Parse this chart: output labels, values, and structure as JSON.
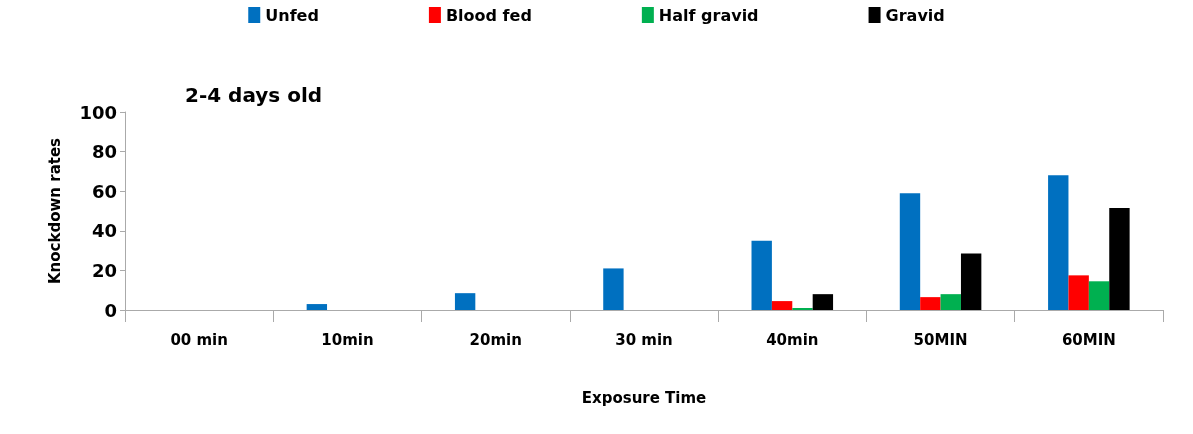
{
  "chart_data": {
    "type": "bar",
    "title": "2-4 days old",
    "xlabel": "Exposure Time",
    "ylabel": "Knockdown rates",
    "categories": [
      "00 min",
      "10min",
      "20min",
      "30 min",
      "40min",
      "50MIN",
      "60MIN"
    ],
    "series": [
      {
        "name": "Unfed",
        "color": "#0070c0",
        "values": [
          0,
          3,
          8.5,
          21,
          35,
          59,
          68
        ]
      },
      {
        "name": "Blood fed",
        "color": "#ff0000",
        "values": [
          0,
          0,
          0,
          0,
          4.5,
          6.5,
          17.5
        ]
      },
      {
        "name": "Half gravid",
        "color": "#00b050",
        "values": [
          0,
          0,
          0,
          0,
          1,
          8,
          14.5
        ]
      },
      {
        "name": "Gravid",
        "color": "#000000",
        "values": [
          0,
          0,
          0,
          0,
          8,
          28.5,
          51.5
        ]
      }
    ],
    "ylim": [
      0,
      100
    ],
    "yticks": [
      0,
      20,
      40,
      60,
      80,
      100
    ],
    "grid": false,
    "legend": "top"
  }
}
